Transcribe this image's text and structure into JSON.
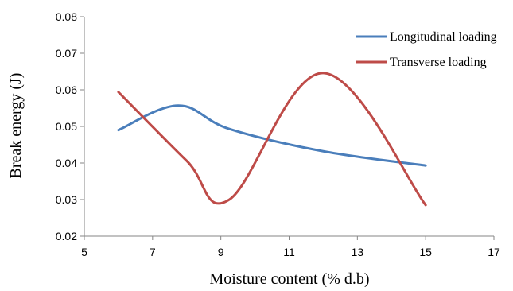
{
  "chart_data": {
    "type": "line",
    "title": "",
    "xlabel": "Moisture content (% d.b)",
    "ylabel": "Break energy  (J)",
    "xlim": [
      5,
      17
    ],
    "ylim": [
      0.02,
      0.08
    ],
    "x_ticks": [
      "5",
      "7",
      "9",
      "11",
      "13",
      "15",
      "17"
    ],
    "y_ticks": [
      "0.02",
      "0.03",
      "0.04",
      "0.05",
      "0.06",
      "0.07",
      "0.08"
    ],
    "grid": false,
    "smooth": true,
    "legend_position": "top-right",
    "series": [
      {
        "name": "Longitudinal loading",
        "color": "#4a7ebb",
        "x": [
          6,
          7.75,
          9.25,
          12,
          15
        ],
        "y": [
          0.049,
          0.0557,
          0.0493,
          0.0432,
          0.0393
        ]
      },
      {
        "name": "Transverse loading",
        "color": "#be4b48",
        "x": [
          6,
          8,
          9.25,
          12,
          15
        ],
        "y": [
          0.0594,
          0.0406,
          0.03,
          0.0646,
          0.0285
        ]
      }
    ]
  }
}
